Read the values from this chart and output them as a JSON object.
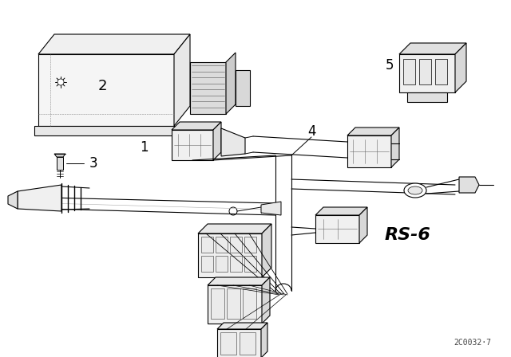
{
  "background_color": "#ffffff",
  "line_color": "#000000",
  "figure_width": 6.4,
  "figure_height": 4.48,
  "dpi": 100,
  "watermark": "2C0032·7",
  "rs_label": "RS-6",
  "lw": 0.8
}
